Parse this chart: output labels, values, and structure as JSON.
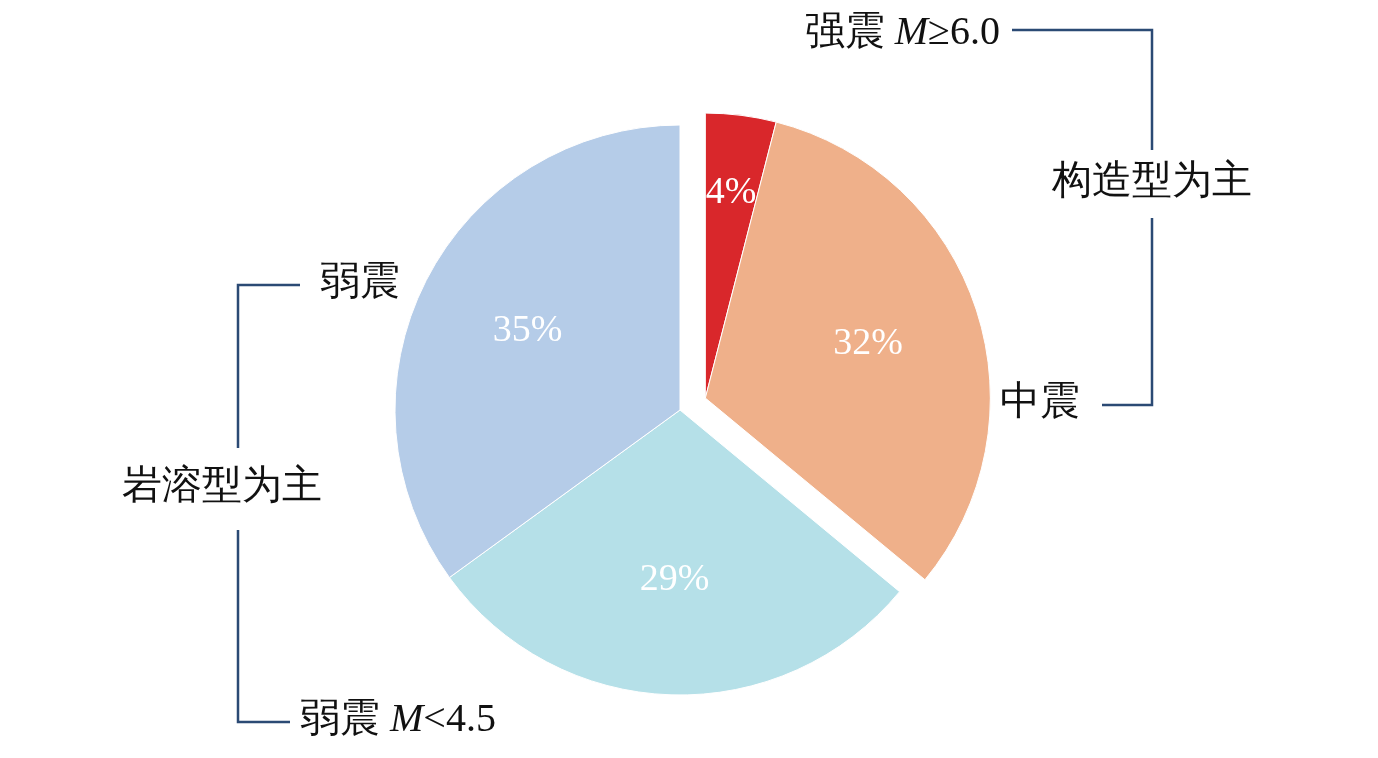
{
  "chart_data": {
    "type": "pie",
    "categories": [
      "强震 *M*≥6.0",
      "中震",
      "弱震 *M*<4.5",
      "弱震"
    ],
    "values": [
      4,
      32,
      29,
      35
    ],
    "colors": [
      "#d9272b",
      "#efb08a",
      "#b5e0e8",
      "#b5cce8"
    ],
    "value_labels": [
      "4%",
      "32%",
      "29%",
      "35%"
    ],
    "annotations": [
      "构造型为主",
      "岩溶型为主"
    ]
  }
}
